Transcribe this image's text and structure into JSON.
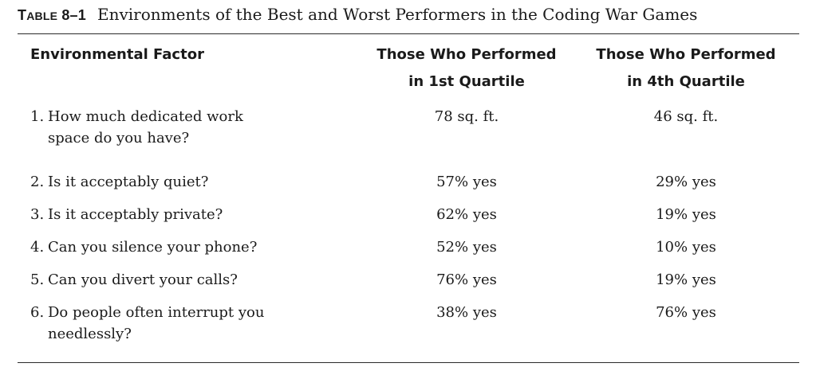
{
  "caption": {
    "label_prefix": "T",
    "label_smallcaps": "ABLE",
    "number": "8–1",
    "title": "Environments of the Best and Worst Performers in the Coding War Games"
  },
  "headers": {
    "factor": "Environmental Factor",
    "q1_line1": "Those Who Performed",
    "q1_line2": "in 1st Quartile",
    "q4_line1": "Those Who Performed",
    "q4_line2": "in 4th Quartile"
  },
  "rows": [
    {
      "num": "1.",
      "line1": "How much dedicated work",
      "line2": "space do you have?",
      "q1": "78 sq. ft.",
      "q4": "46 sq. ft."
    },
    {
      "num": "2.",
      "line1": "Is it acceptably quiet?",
      "line2": "",
      "q1": "57% yes",
      "q4": "29% yes"
    },
    {
      "num": "3.",
      "line1": "Is it acceptably private?",
      "line2": "",
      "q1": "62% yes",
      "q4": "19% yes"
    },
    {
      "num": "4.",
      "line1": "Can you silence your phone?",
      "line2": "",
      "q1": "52% yes",
      "q4": "10% yes"
    },
    {
      "num": "5.",
      "line1": "Can you divert your calls?",
      "line2": "",
      "q1": "76% yes",
      "q4": "19% yes"
    },
    {
      "num": "6.",
      "line1": "Do people often interrupt you",
      "line2": "needlessly?",
      "q1": "38% yes",
      "q4": "76% yes"
    }
  ]
}
